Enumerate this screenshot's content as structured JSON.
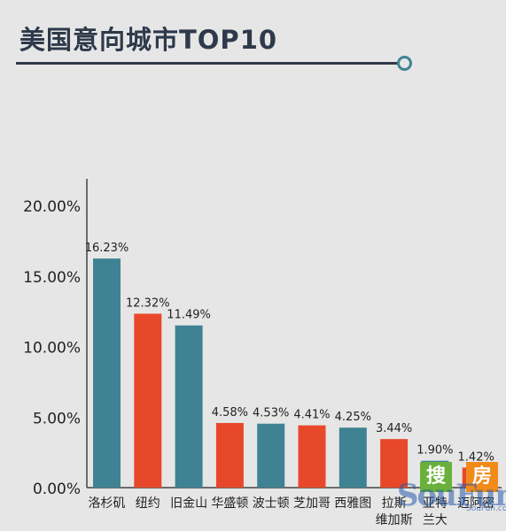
{
  "title": "美国意向城市TOP10",
  "colors": {
    "teal": "#3f8293",
    "red": "#e8482a",
    "axis": "#444444",
    "text": "#222222"
  },
  "chart_data": {
    "type": "bar",
    "categories": [
      "洛杉矶",
      "纽约",
      "旧金山",
      "华盛顿",
      "波士顿",
      "芝加哥",
      "西雅图",
      "拉斯维加斯",
      "亚特兰大",
      "迈阿密"
    ],
    "values": [
      16.23,
      12.32,
      11.49,
      4.58,
      4.53,
      4.41,
      4.25,
      3.44,
      1.9,
      1.42
    ],
    "value_labels": [
      "16.23%",
      "12.32%",
      "11.49%",
      "4.58%",
      "4.53%",
      "4.41%",
      "4.25%",
      "3.44%",
      "1.90%",
      "1.42%"
    ],
    "bar_colors": [
      "#3f8293",
      "#e8482a",
      "#3f8293",
      "#e8482a",
      "#3f8293",
      "#e8482a",
      "#3f8293",
      "#e8482a",
      "#3f8293",
      "#e8482a"
    ],
    "y_ticks": [
      "0.00%",
      "5.00%",
      "10.00%",
      "15.00%",
      "20.00%"
    ],
    "y_tick_values": [
      0,
      5,
      10,
      15,
      20
    ],
    "ylim": [
      0,
      20
    ],
    "grid": false,
    "title": "",
    "xlabel": "",
    "ylabel": ""
  },
  "watermark": {
    "mark": "SouFun",
    "a": "搜",
    "b": "房",
    "site": "SouFun.com"
  }
}
